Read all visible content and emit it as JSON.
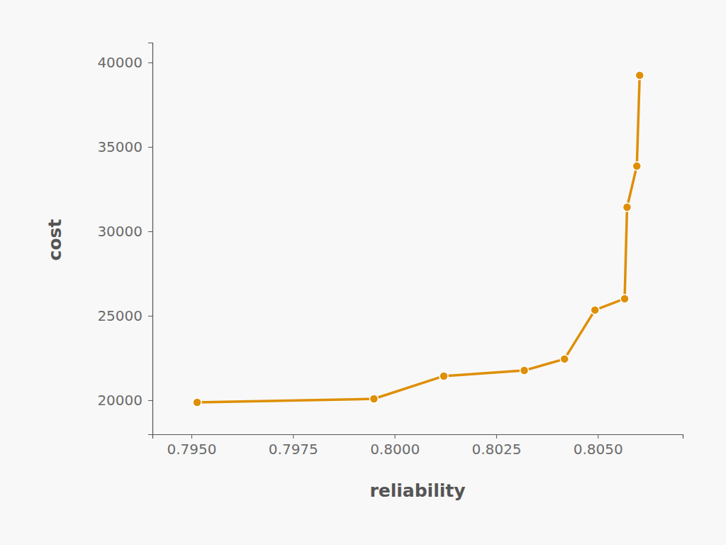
{
  "chart_data": {
    "type": "line",
    "x_label": "reliability",
    "y_label": "cost",
    "x": [
      0.79514,
      0.79949,
      0.80121,
      0.80319,
      0.80418,
      0.80493,
      0.80566,
      0.80572,
      0.80596,
      0.80603
    ],
    "values": [
      19870,
      20080,
      21430,
      21760,
      22440,
      25340,
      26010,
      31430,
      33870,
      39240
    ],
    "color": "#de8f05",
    "marker": "circle",
    "xlim": [
      0.79404,
      0.80709
    ],
    "ylim": [
      17980,
      41180
    ],
    "xticks": [
      {
        "value": 0.795,
        "label": "0.7950"
      },
      {
        "value": 0.7975,
        "label": "0.7975"
      },
      {
        "value": 0.8,
        "label": "0.8000"
      },
      {
        "value": 0.8025,
        "label": "0.8025"
      },
      {
        "value": 0.805,
        "label": "0.8050"
      }
    ],
    "yticks": [
      20000,
      25000,
      30000,
      35000,
      40000
    ]
  }
}
